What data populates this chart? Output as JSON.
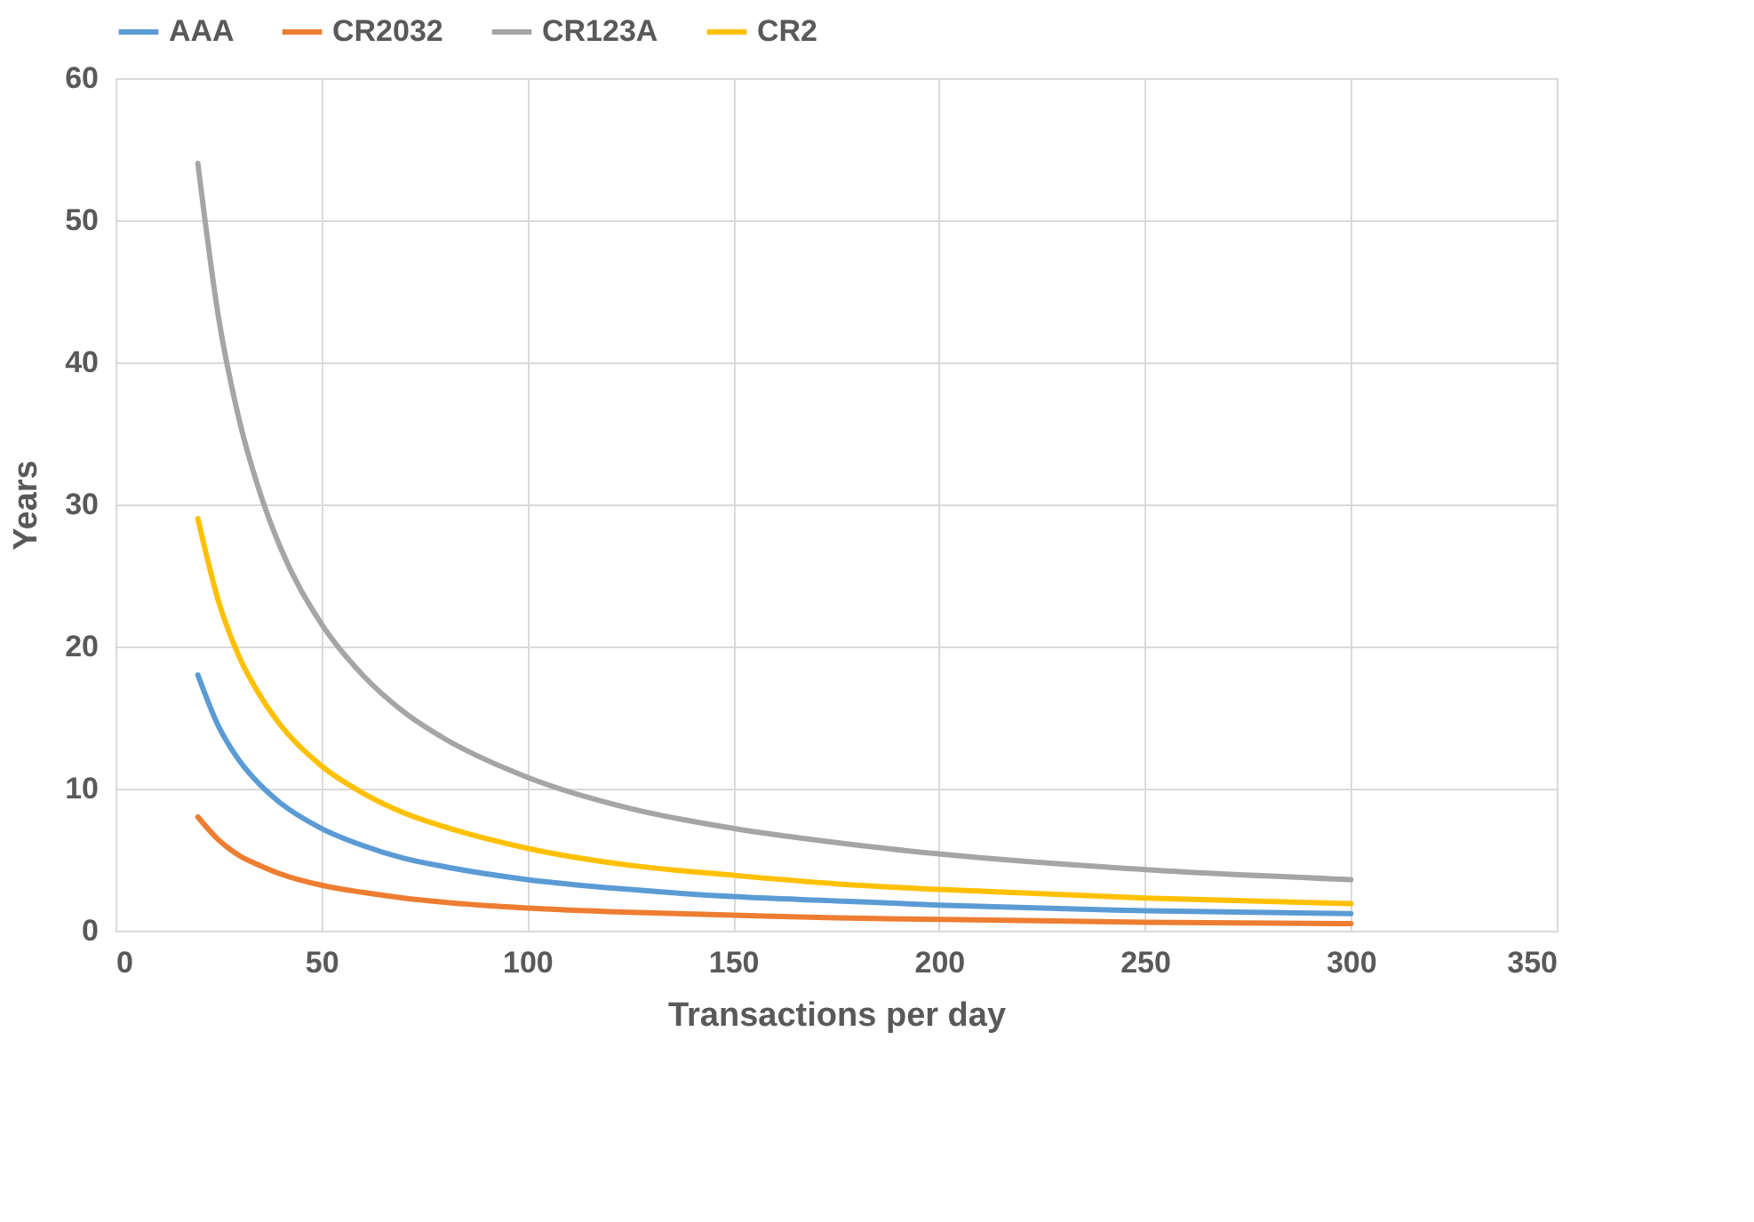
{
  "chart_data": {
    "type": "line",
    "xlabel": "Transactions per day",
    "ylabel": "Years",
    "x": [
      20,
      25,
      30,
      35,
      40,
      50,
      60,
      70,
      80,
      100,
      125,
      150,
      175,
      200,
      250,
      300
    ],
    "series": [
      {
        "name": "AAA",
        "color": "#5b9bd5",
        "values": [
          18,
          14.4,
          12,
          10.3,
          9,
          7.2,
          6,
          5.1,
          4.5,
          3.6,
          2.9,
          2.4,
          2.1,
          1.8,
          1.4,
          1.2
        ]
      },
      {
        "name": "CR2032",
        "color": "#ed7d31",
        "values": [
          8,
          6.4,
          5.3,
          4.6,
          4,
          3.2,
          2.7,
          2.3,
          2,
          1.6,
          1.3,
          1.1,
          0.9,
          0.8,
          0.6,
          0.5
        ]
      },
      {
        "name": "CR123A",
        "color": "#a5a5a5",
        "values": [
          54,
          43.2,
          36,
          30.9,
          27,
          21.6,
          18,
          15.4,
          13.5,
          10.8,
          8.6,
          7.2,
          6.2,
          5.4,
          4.3,
          3.6
        ]
      },
      {
        "name": "CR2",
        "color": "#ffc000",
        "values": [
          29,
          23.2,
          19.3,
          16.6,
          14.5,
          11.6,
          9.7,
          8.3,
          7.3,
          5.8,
          4.6,
          3.9,
          3.3,
          2.9,
          2.3,
          1.9
        ]
      }
    ],
    "xlim": [
      0,
      350
    ],
    "xticks": [
      0,
      50,
      100,
      150,
      200,
      250,
      300,
      350
    ],
    "ylim": [
      0,
      60
    ],
    "yticks": [
      0,
      10,
      20,
      30,
      40,
      50,
      60
    ],
    "grid": true,
    "legend": "top",
    "marker": "none",
    "line_style": "solid"
  }
}
